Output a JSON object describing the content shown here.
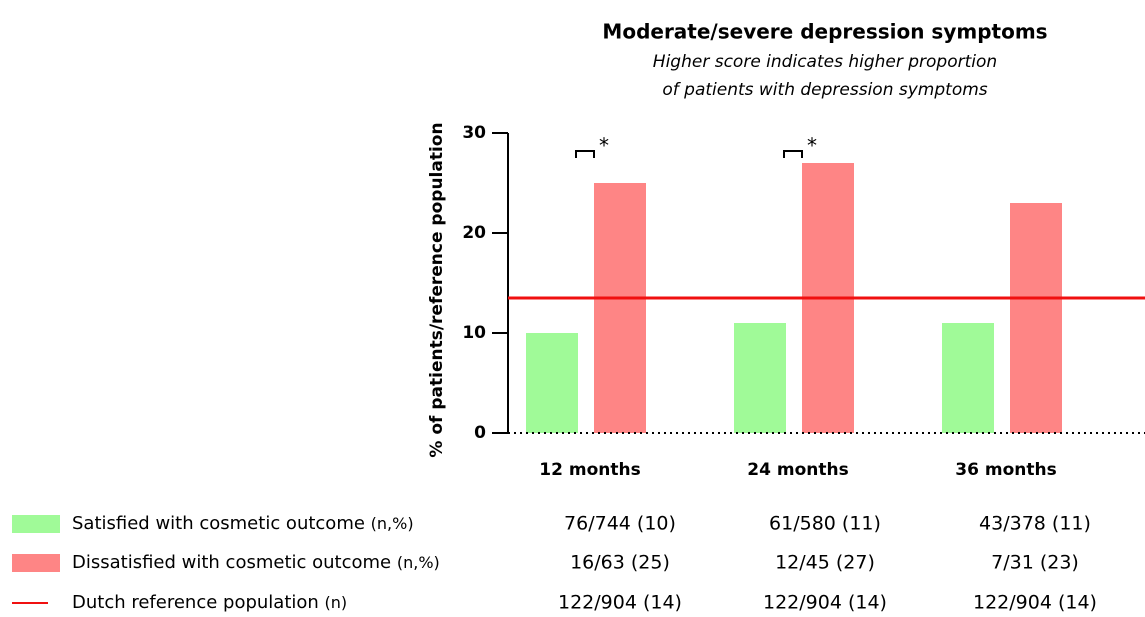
{
  "chart_data": {
    "type": "bar",
    "title": "Moderate/severe depression symptoms",
    "subtitle": [
      "Higher score indicates higher proportion",
      "of patients with depression symptoms"
    ],
    "ylabel": "% of patients/reference population",
    "categories": [
      "12 months",
      "24 months",
      "36 months"
    ],
    "ylim": [
      0,
      30
    ],
    "yticks": [
      0,
      10,
      20,
      30
    ],
    "series": [
      {
        "name": "Satisfied with cosmetic outcome",
        "legend_suffix": "(n,%)",
        "color": "#a0fa98",
        "values": [
          10,
          11,
          11
        ],
        "table": [
          "76/744 (10)",
          "61/580 (11)",
          "43/378 (11)"
        ]
      },
      {
        "name": "Dissatisfied with cosmetic outcome",
        "legend_suffix": "(n,%)",
        "color": "#fe8585",
        "values": [
          25,
          27,
          23
        ],
        "table": [
          "16/63 (25)",
          "12/45 (27)",
          "7/31 (23)"
        ]
      }
    ],
    "reference": {
      "name": "Dutch reference population",
      "legend_suffix": "(n)",
      "color": "#f01010",
      "value": 13.5,
      "table": [
        "122/904 (14)",
        "122/904 (14)",
        "122/904 (14)"
      ]
    },
    "annotations": [
      {
        "text": "*",
        "category": "12 months"
      },
      {
        "text": "*",
        "category": "24 months"
      }
    ]
  }
}
